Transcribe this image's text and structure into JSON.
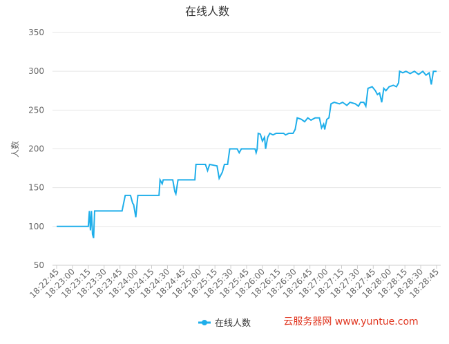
{
  "chart_data": {
    "type": "line",
    "title": "在线人数",
    "y_label": "人数",
    "watermark": "云服务器网 www.yuntue.com",
    "x": [
      "18:22:45",
      "18:23:15",
      "18:23:16",
      "18:23:17",
      "18:23:18",
      "18:23:19",
      "18:23:20",
      "18:23:21",
      "18:23:47",
      "18:23:50",
      "18:23:55",
      "18:23:57",
      "18:23:58",
      "18:24:00",
      "18:24:02",
      "18:24:22",
      "18:24:23",
      "18:24:25",
      "18:24:26",
      "18:24:35",
      "18:24:37",
      "18:24:38",
      "18:24:40",
      "18:24:56",
      "18:24:57",
      "18:25:06",
      "18:25:08",
      "18:25:10",
      "18:25:17",
      "18:25:19",
      "18:25:22",
      "18:25:24",
      "18:25:27",
      "18:25:29",
      "18:25:36",
      "18:25:38",
      "18:25:40",
      "18:25:53",
      "18:25:54",
      "18:25:55",
      "18:25:56",
      "18:25:58",
      "18:26:00",
      "18:26:02",
      "18:26:03",
      "18:26:05",
      "18:26:07",
      "18:26:10",
      "18:26:13",
      "18:26:20",
      "18:26:22",
      "18:26:25",
      "18:26:29",
      "18:26:31",
      "18:26:33",
      "18:26:37",
      "18:26:40",
      "18:26:43",
      "18:26:46",
      "18:26:50",
      "18:26:54",
      "18:26:56",
      "18:26:58",
      "18:26:59",
      "18:27:01",
      "18:27:03",
      "18:27:05",
      "18:27:08",
      "18:27:13",
      "18:27:16",
      "18:27:20",
      "18:27:23",
      "18:27:28",
      "18:27:31",
      "18:27:33",
      "18:27:36",
      "18:27:38",
      "18:27:40",
      "18:27:44",
      "18:27:47",
      "18:27:49",
      "18:27:51",
      "18:27:53",
      "18:27:55",
      "18:27:57",
      "18:28:00",
      "18:28:04",
      "18:28:07",
      "18:28:09",
      "18:28:10",
      "18:28:13",
      "18:28:16",
      "18:28:20",
      "18:28:24",
      "18:28:28",
      "18:28:32",
      "18:28:35",
      "18:28:38",
      "18:28:40",
      "18:28:42",
      "18:28:45"
    ],
    "series": [
      {
        "name": "在线人数",
        "color": "#1eaeea",
        "values": [
          100,
          100,
          120,
          95,
          120,
          90,
          85,
          120,
          120,
          140,
          140,
          130,
          128,
          112,
          140,
          140,
          160,
          155,
          160,
          160,
          145,
          142,
          160,
          160,
          180,
          180,
          172,
          180,
          178,
          162,
          170,
          180,
          180,
          200,
          200,
          195,
          200,
          200,
          195,
          200,
          220,
          219,
          210,
          215,
          200,
          215,
          220,
          218,
          220,
          220,
          218,
          220,
          220,
          225,
          240,
          238,
          235,
          240,
          237,
          240,
          240,
          227,
          232,
          225,
          238,
          240,
          258,
          260,
          258,
          260,
          256,
          260,
          258,
          255,
          260,
          260,
          255,
          278,
          280,
          275,
          270,
          272,
          260,
          278,
          275,
          280,
          282,
          280,
          285,
          300,
          298,
          300,
          297,
          300,
          296,
          300,
          295,
          298,
          283,
          300,
          300
        ]
      }
    ],
    "xlim": [
      "18:22:45",
      "18:28:45"
    ],
    "xticks": [
      "18:22:45",
      "18:23:00",
      "18:23:15",
      "18:23:30",
      "18:23:45",
      "18:24:00",
      "18:24:15",
      "18:24:30",
      "18:24:45",
      "18:25:00",
      "18:25:15",
      "18:25:30",
      "18:25:45",
      "18:26:00",
      "18:26:15",
      "18:26:30",
      "18:26:45",
      "18:27:00",
      "18:27:15",
      "18:27:30",
      "18:27:45",
      "18:28:00",
      "18:28:15",
      "18:28:30",
      "18:28:45"
    ],
    "ylim": [
      50,
      350
    ],
    "yticks": [
      50,
      100,
      150,
      200,
      250,
      300,
      350
    ],
    "grid": true
  }
}
